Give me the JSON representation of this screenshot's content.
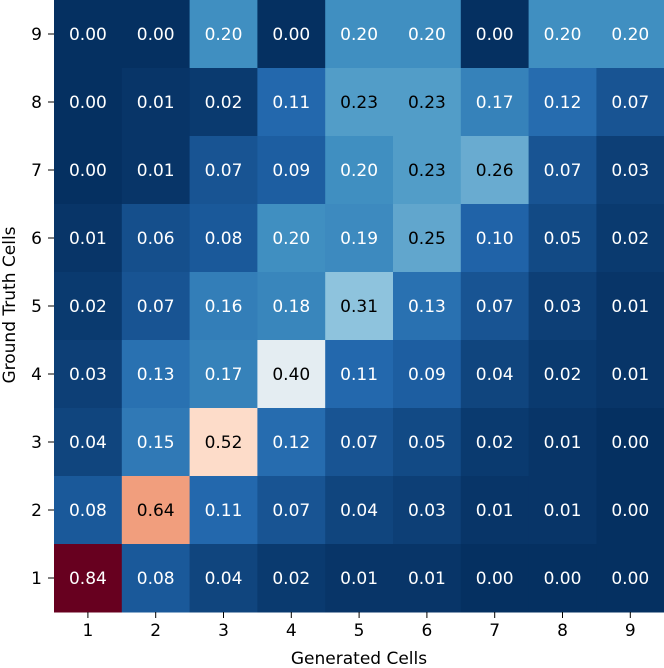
{
  "chart_data": {
    "type": "heatmap",
    "title": "",
    "xlabel": "Generated Cells",
    "ylabel": "Ground Truth Cells",
    "x_categories": [
      "1",
      "2",
      "3",
      "4",
      "5",
      "6",
      "7",
      "8",
      "9"
    ],
    "y_categories": [
      "1",
      "2",
      "3",
      "4",
      "5",
      "6",
      "7",
      "8",
      "9"
    ],
    "value_range": [
      0,
      0.84
    ],
    "colormap": "RdBu_r",
    "rows": [
      {
        "y": "9",
        "values": [
          0.0,
          0.0,
          0.2,
          0.0,
          0.2,
          0.2,
          0.0,
          0.2,
          0.2
        ]
      },
      {
        "y": "8",
        "values": [
          0.0,
          0.01,
          0.02,
          0.11,
          0.23,
          0.23,
          0.17,
          0.12,
          0.07
        ]
      },
      {
        "y": "7",
        "values": [
          0.0,
          0.01,
          0.07,
          0.09,
          0.2,
          0.23,
          0.26,
          0.07,
          0.03
        ]
      },
      {
        "y": "6",
        "values": [
          0.01,
          0.06,
          0.08,
          0.2,
          0.19,
          0.25,
          0.1,
          0.05,
          0.02
        ]
      },
      {
        "y": "5",
        "values": [
          0.02,
          0.07,
          0.16,
          0.18,
          0.31,
          0.13,
          0.07,
          0.03,
          0.01
        ]
      },
      {
        "y": "4",
        "values": [
          0.03,
          0.13,
          0.17,
          0.4,
          0.11,
          0.09,
          0.04,
          0.02,
          0.01
        ]
      },
      {
        "y": "3",
        "values": [
          0.04,
          0.15,
          0.52,
          0.12,
          0.07,
          0.05,
          0.02,
          0.01,
          0.0
        ]
      },
      {
        "y": "2",
        "values": [
          0.08,
          0.64,
          0.11,
          0.07,
          0.04,
          0.03,
          0.01,
          0.01,
          0.0
        ]
      },
      {
        "y": "1",
        "values": [
          0.84,
          0.08,
          0.04,
          0.02,
          0.01,
          0.01,
          0.0,
          0.0,
          0.0
        ]
      }
    ]
  }
}
